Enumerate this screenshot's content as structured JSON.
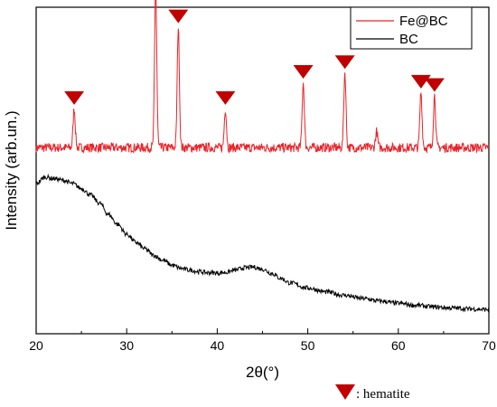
{
  "chart_data": {
    "type": "line",
    "xlabel": "2θ(°)",
    "ylabel": "Intensity (arb.un.)",
    "xlim": [
      20,
      70
    ],
    "ylim": [
      0,
      100
    ],
    "x_ticks": [
      20,
      30,
      40,
      50,
      60,
      70
    ],
    "y_ticks_visible": false,
    "grid": false,
    "legend_position": "top-right",
    "series": [
      {
        "name": "Fe@BC",
        "color": "#e8242a",
        "baseline": 57,
        "noise": 0.9,
        "peaks": [
          {
            "x": 24.2,
            "height": 12
          },
          {
            "x": 33.2,
            "height": 49
          },
          {
            "x": 35.7,
            "height": 37
          },
          {
            "x": 40.9,
            "height": 12
          },
          {
            "x": 49.5,
            "height": 20
          },
          {
            "x": 54.1,
            "height": 23
          },
          {
            "x": 57.6,
            "height": 5
          },
          {
            "x": 62.5,
            "height": 17
          },
          {
            "x": 64.0,
            "height": 16
          }
        ]
      },
      {
        "name": "BC",
        "color": "#000000",
        "noise": 0.7,
        "points": [
          [
            20,
            46
          ],
          [
            21,
            48
          ],
          [
            22,
            47.5
          ],
          [
            23,
            47
          ],
          [
            24,
            46
          ],
          [
            25,
            44.5
          ],
          [
            26,
            42.5
          ],
          [
            27,
            40
          ],
          [
            28,
            36.5
          ],
          [
            29,
            33.5
          ],
          [
            30,
            30.5
          ],
          [
            31,
            28
          ],
          [
            32,
            26
          ],
          [
            33,
            24
          ],
          [
            34,
            22.5
          ],
          [
            35,
            21
          ],
          [
            36,
            20
          ],
          [
            37,
            19.5
          ],
          [
            38,
            19
          ],
          [
            39,
            18.7
          ],
          [
            40,
            18.6
          ],
          [
            41,
            18.8
          ],
          [
            42,
            19.5
          ],
          [
            43,
            20.2
          ],
          [
            44,
            20.4
          ],
          [
            45,
            19.8
          ],
          [
            46,
            18.5
          ],
          [
            47,
            17
          ],
          [
            48,
            15.6
          ],
          [
            50,
            14
          ],
          [
            52,
            12.8
          ],
          [
            54,
            11.8
          ],
          [
            56,
            10.8
          ],
          [
            58,
            10
          ],
          [
            60,
            9.3
          ],
          [
            62,
            8.7
          ],
          [
            64,
            8.2
          ],
          [
            66,
            7.9
          ],
          [
            68,
            7.6
          ],
          [
            70,
            7.4
          ]
        ]
      }
    ],
    "markers": {
      "symbol": "inverted-triangle",
      "color": "#c00000",
      "meaning_label": ": hematite",
      "x": [
        24.2,
        33.2,
        35.7,
        40.9,
        49.5,
        54.1,
        62.5,
        64.0
      ]
    }
  }
}
